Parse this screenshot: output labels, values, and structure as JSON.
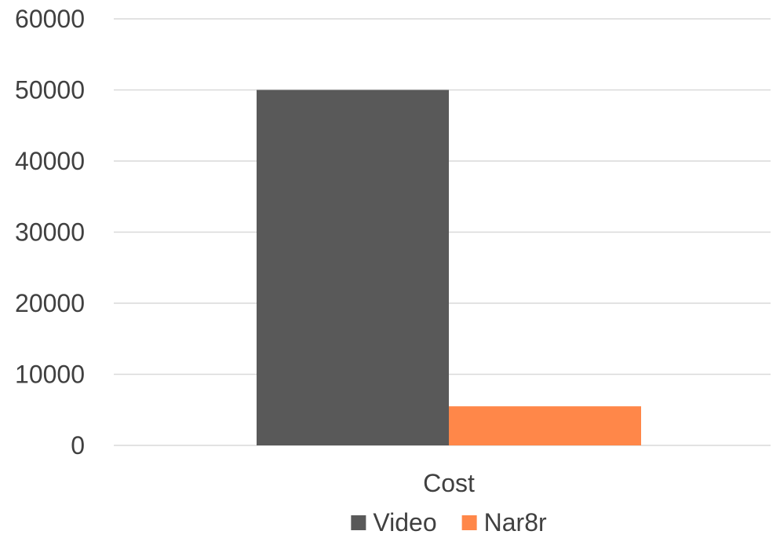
{
  "chart_data": {
    "type": "bar",
    "title": "",
    "xlabel": "",
    "ylabel": "",
    "categories": [
      "Cost"
    ],
    "series": [
      {
        "name": "Video",
        "values": [
          50000
        ],
        "color": "#595959"
      },
      {
        "name": "Nar8r",
        "values": [
          5500
        ],
        "color": "#ff8749"
      }
    ],
    "ylim": [
      0,
      60000
    ],
    "yticks": [
      0,
      10000,
      20000,
      30000,
      40000,
      50000,
      60000
    ],
    "grid": true,
    "legend_position": "bottom"
  }
}
